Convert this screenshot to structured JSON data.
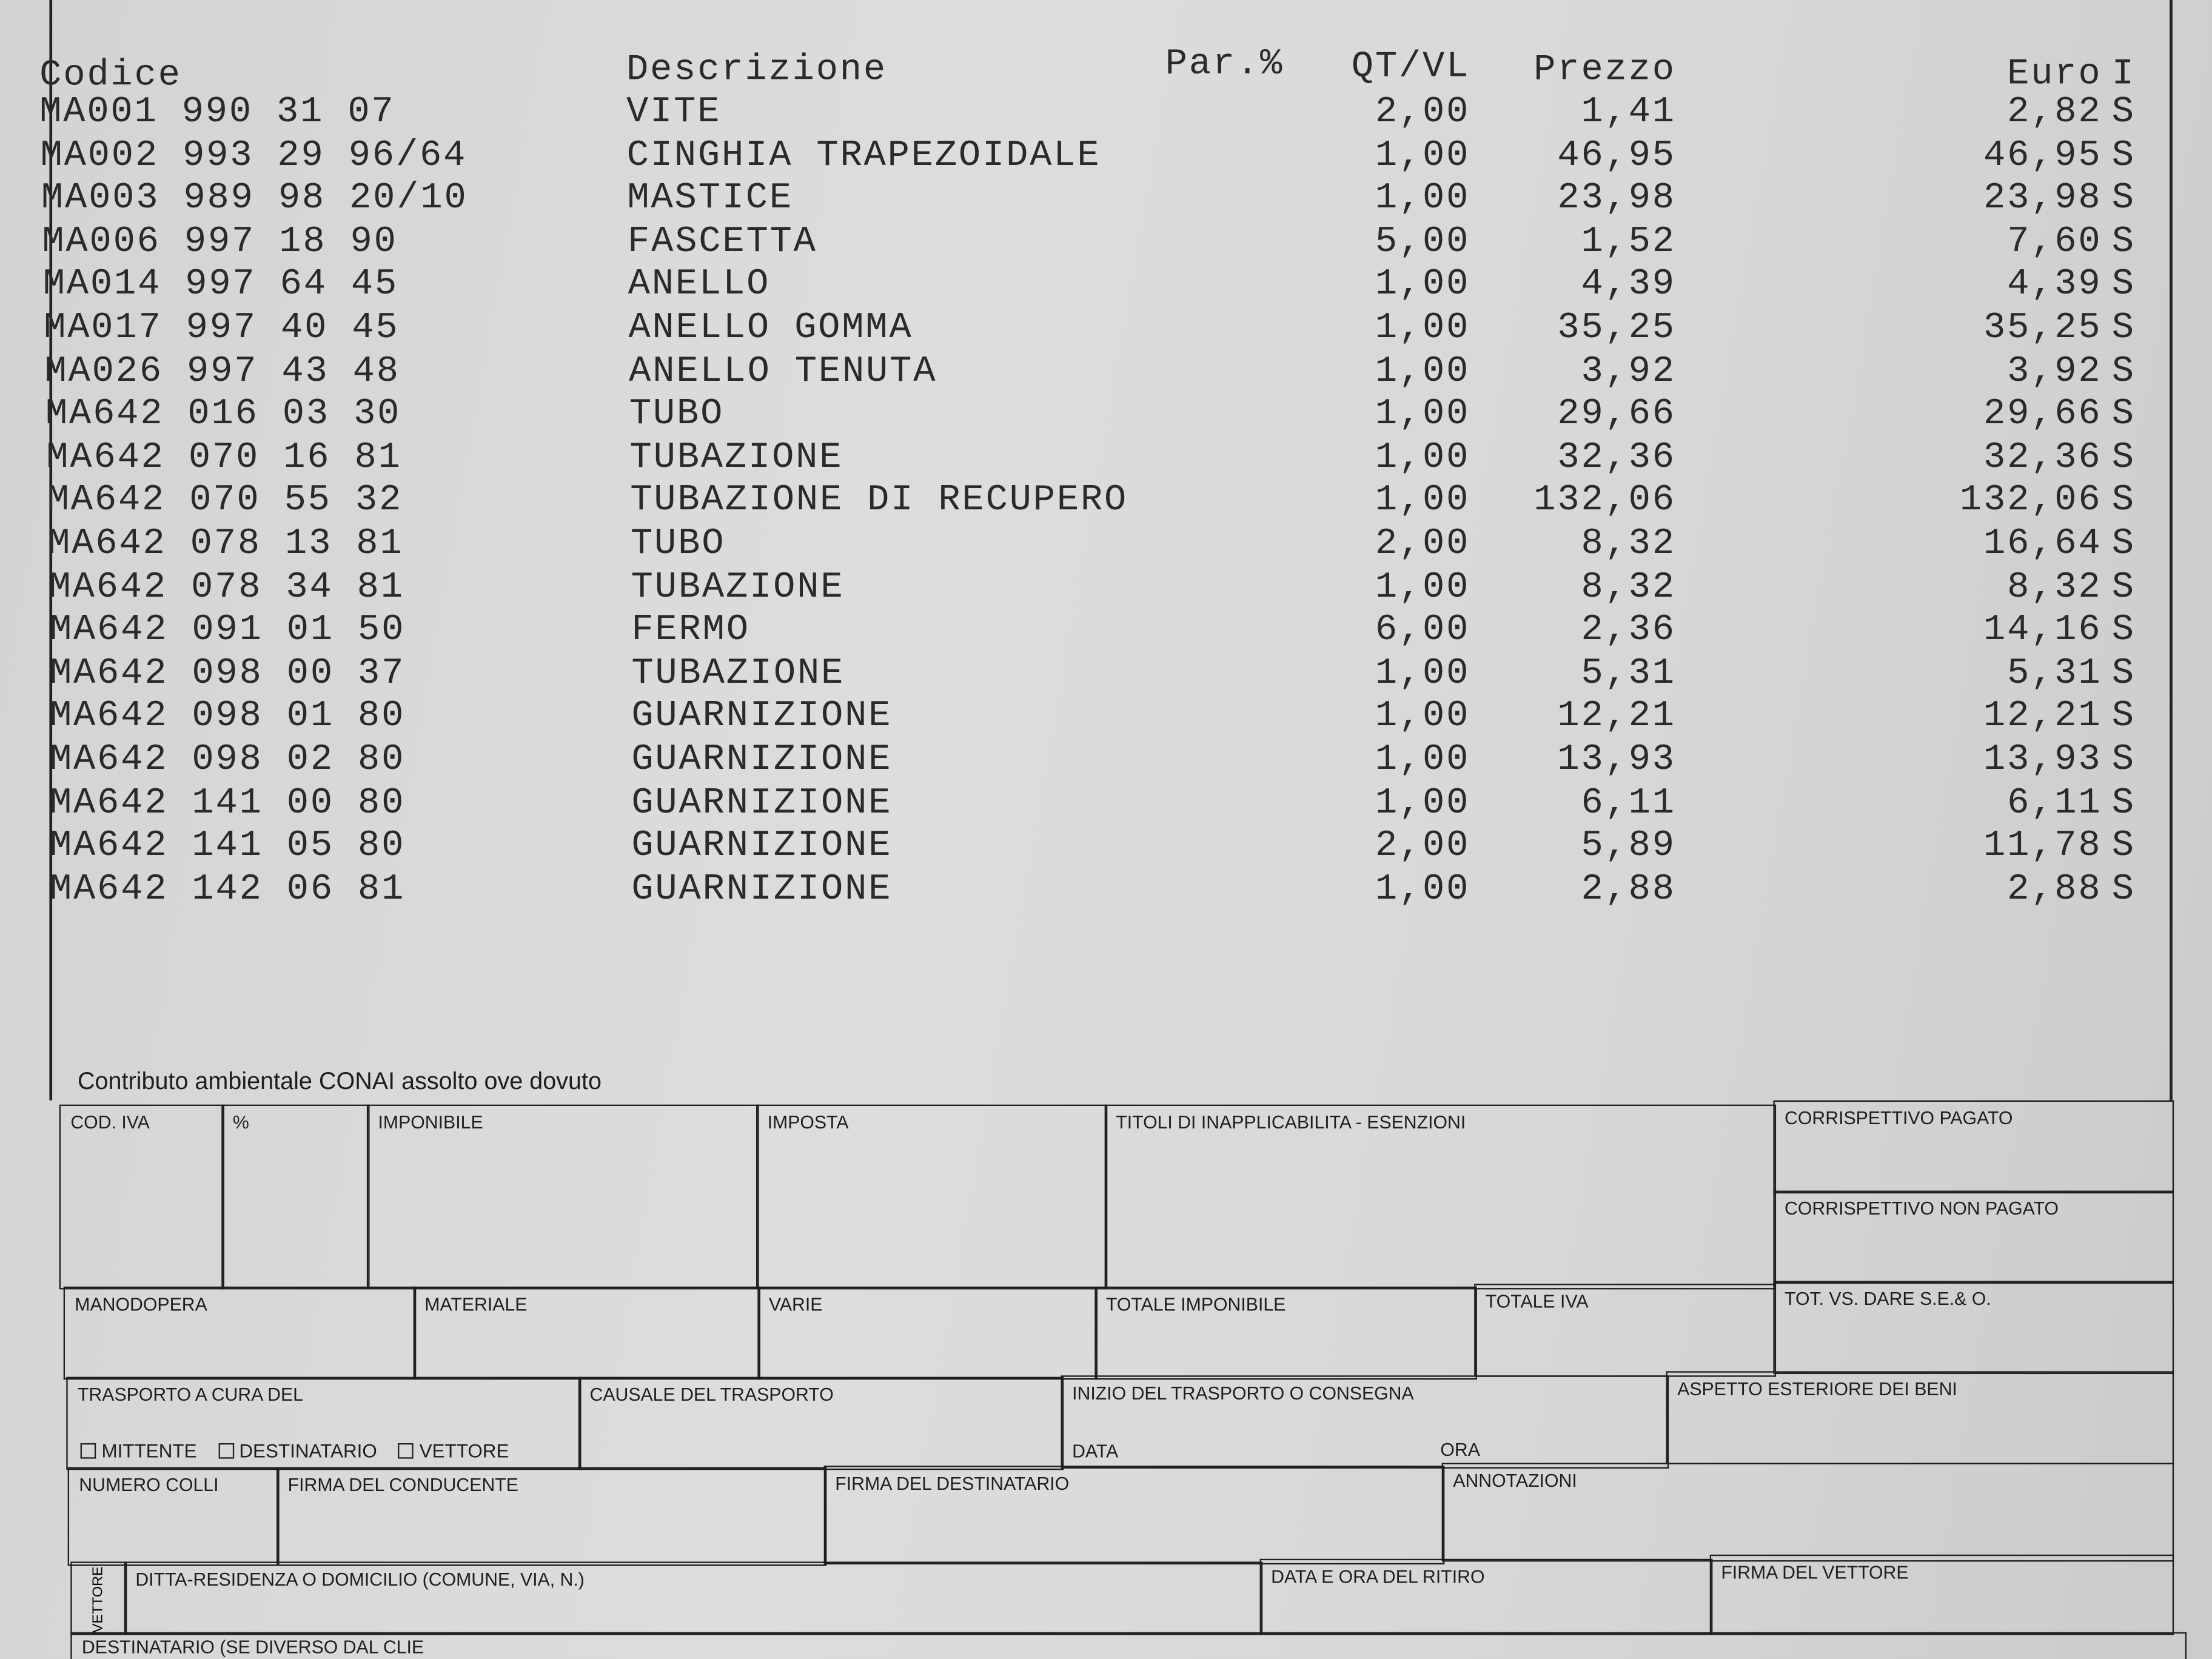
{
  "headers": {
    "code": "Codice",
    "description": "Descrizione",
    "discount": "Par.%",
    "qty": "QT/VL",
    "price": "Prezzo",
    "total": "Euro",
    "vat": "I"
  },
  "items": [
    {
      "code": "MA001 990 31 07",
      "description": "VITE",
      "qty": "2,00",
      "price": "1,41",
      "total": "2,82",
      "vat": "S"
    },
    {
      "code": "MA002 993 29 96/64",
      "description": "CINGHIA TRAPEZOIDALE",
      "qty": "1,00",
      "price": "46,95",
      "total": "46,95",
      "vat": "S"
    },
    {
      "code": "MA003 989 98 20/10",
      "description": "MASTICE",
      "qty": "1,00",
      "price": "23,98",
      "total": "23,98",
      "vat": "S"
    },
    {
      "code": "MA006 997 18 90",
      "description": "FASCETTA",
      "qty": "5,00",
      "price": "1,52",
      "total": "7,60",
      "vat": "S"
    },
    {
      "code": "MA014 997 64 45",
      "description": "ANELLO",
      "qty": "1,00",
      "price": "4,39",
      "total": "4,39",
      "vat": "S"
    },
    {
      "code": "MA017 997 40 45",
      "description": "ANELLO GOMMA",
      "qty": "1,00",
      "price": "35,25",
      "total": "35,25",
      "vat": "S"
    },
    {
      "code": "MA026 997 43 48",
      "description": "ANELLO TENUTA",
      "qty": "1,00",
      "price": "3,92",
      "total": "3,92",
      "vat": "S"
    },
    {
      "code": "MA642 016 03 30",
      "description": "TUBO",
      "qty": "1,00",
      "price": "29,66",
      "total": "29,66",
      "vat": "S"
    },
    {
      "code": "MA642 070 16 81",
      "description": "TUBAZIONE",
      "qty": "1,00",
      "price": "32,36",
      "total": "32,36",
      "vat": "S"
    },
    {
      "code": "MA642 070 55 32",
      "description": "TUBAZIONE DI RECUPERO",
      "qty": "1,00",
      "price": "132,06",
      "total": "132,06",
      "vat": "S"
    },
    {
      "code": "MA642 078 13 81",
      "description": "TUBO",
      "qty": "2,00",
      "price": "8,32",
      "total": "16,64",
      "vat": "S"
    },
    {
      "code": "MA642 078 34 81",
      "description": "TUBAZIONE",
      "qty": "1,00",
      "price": "8,32",
      "total": "8,32",
      "vat": "S"
    },
    {
      "code": "MA642 091 01 50",
      "description": "FERMO",
      "qty": "6,00",
      "price": "2,36",
      "total": "14,16",
      "vat": "S"
    },
    {
      "code": "MA642 098 00 37",
      "description": "TUBAZIONE",
      "qty": "1,00",
      "price": "5,31",
      "total": "5,31",
      "vat": "S"
    },
    {
      "code": "MA642 098 01 80",
      "description": "GUARNIZIONE",
      "qty": "1,00",
      "price": "12,21",
      "total": "12,21",
      "vat": "S"
    },
    {
      "code": "MA642 098 02 80",
      "description": "GUARNIZIONE",
      "qty": "1,00",
      "price": "13,93",
      "total": "13,93",
      "vat": "S"
    },
    {
      "code": "MA642 141 00 80",
      "description": "GUARNIZIONE",
      "qty": "1,00",
      "price": "6,11",
      "total": "6,11",
      "vat": "S"
    },
    {
      "code": "MA642 141 05 80",
      "description": "GUARNIZIONE",
      "qty": "2,00",
      "price": "5,89",
      "total": "11,78",
      "vat": "S"
    },
    {
      "code": "MA642 142 06 81",
      "description": "GUARNIZIONE",
      "qty": "1,00",
      "price": "2,88",
      "total": "2,88",
      "vat": "S"
    }
  ],
  "footer_note": "Contributo ambientale CONAI assolto ove dovuto",
  "form": {
    "cod_iva": "COD. IVA",
    "percent": "%",
    "imponibile": "IMPONIBILE",
    "imposta": "IMPOSTA",
    "titoli": "TITOLI DI INAPPLICABILITA - ESENZIONI",
    "corr_pagato": "CORRISPETTIVO PAGATO",
    "corr_non_pagato": "CORRISPETTIVO NON PAGATO",
    "manodopera": "MANODOPERA",
    "materiale": "MATERIALE",
    "varie": "VARIE",
    "totale_imponibile": "TOTALE IMPONIBILE",
    "totale_iva": "TOTALE IVA",
    "tot_dare": "TOT. VS. DARE S.E.& O.",
    "trasporto": "TRASPORTO A CURA DEL",
    "mittente": "MITTENTE",
    "destinatario": "DESTINATARIO",
    "vettore": "VETTORE",
    "causale": "CAUSALE DEL TRASPORTO",
    "inizio": "INIZIO DEL TRASPORTO O CONSEGNA",
    "data": "DATA",
    "ora": "ORA",
    "aspetto": "ASPETTO ESTERIORE DEI BENI",
    "numero_colli": "NUMERO COLLI",
    "firma_conducente": "FIRMA DEL CONDUCENTE",
    "firma_destinatario": "FIRMA DEL DESTINATARIO",
    "annotazioni": "ANNOTAZIONI",
    "vettore_side": "VETTORE",
    "ditta": "DITTA-RESIDENZA O DOMICILIO (COMUNE, VIA, N.)",
    "data_ritiro": "DATA E ORA DEL RITIRO",
    "firma_vettore": "FIRMA DEL VETTORE",
    "destinatario_partial": "DESTINATARIO (SE DIVERSO DAL CLIE"
  }
}
